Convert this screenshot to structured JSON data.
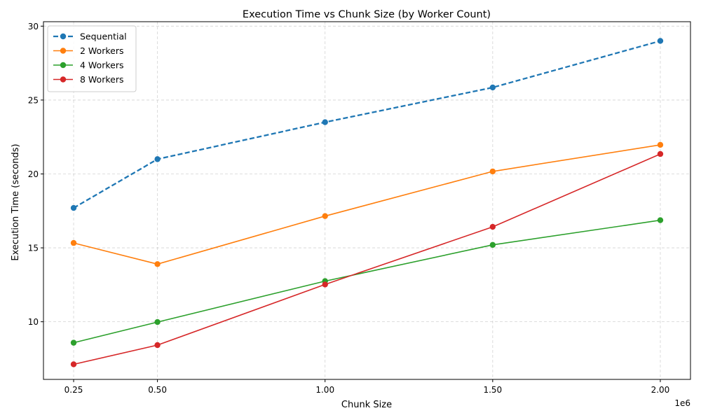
{
  "chart_data": {
    "type": "line",
    "title": "Execution Time vs Chunk Size (by Worker Count)",
    "xlabel": "Chunk Size",
    "ylabel": "Execution Time (seconds)",
    "x_offset_label": "1e6",
    "x": [
      250000,
      500000,
      1000000,
      1500000,
      2000000
    ],
    "x_tick_values": [
      250000,
      500000,
      1000000,
      1500000,
      2000000
    ],
    "x_tick_labels": [
      "0.25",
      "0.50",
      "1.00",
      "1.50",
      "2.00"
    ],
    "xlim": [
      160000,
      2090000
    ],
    "y_tick_values": [
      10,
      15,
      20,
      25,
      30
    ],
    "y_tick_labels": [
      "10",
      "15",
      "20",
      "25",
      "30"
    ],
    "ylim": [
      6.1,
      30.3
    ],
    "grid": true,
    "legend_position": "top-left",
    "series": [
      {
        "name": "Sequential",
        "color": "#1f77b4",
        "dashed": true,
        "values": [
          17.7,
          21.0,
          23.5,
          25.85,
          29.0
        ]
      },
      {
        "name": "2 Workers",
        "color": "#ff7f0e",
        "dashed": false,
        "values": [
          15.33,
          13.9,
          17.15,
          20.17,
          21.97
        ]
      },
      {
        "name": "4 Workers",
        "color": "#2ca02c",
        "dashed": false,
        "values": [
          8.58,
          9.98,
          12.75,
          15.2,
          16.87
        ]
      },
      {
        "name": "8 Workers",
        "color": "#d62728",
        "dashed": false,
        "values": [
          7.12,
          8.42,
          12.52,
          16.42,
          21.35
        ]
      }
    ]
  }
}
